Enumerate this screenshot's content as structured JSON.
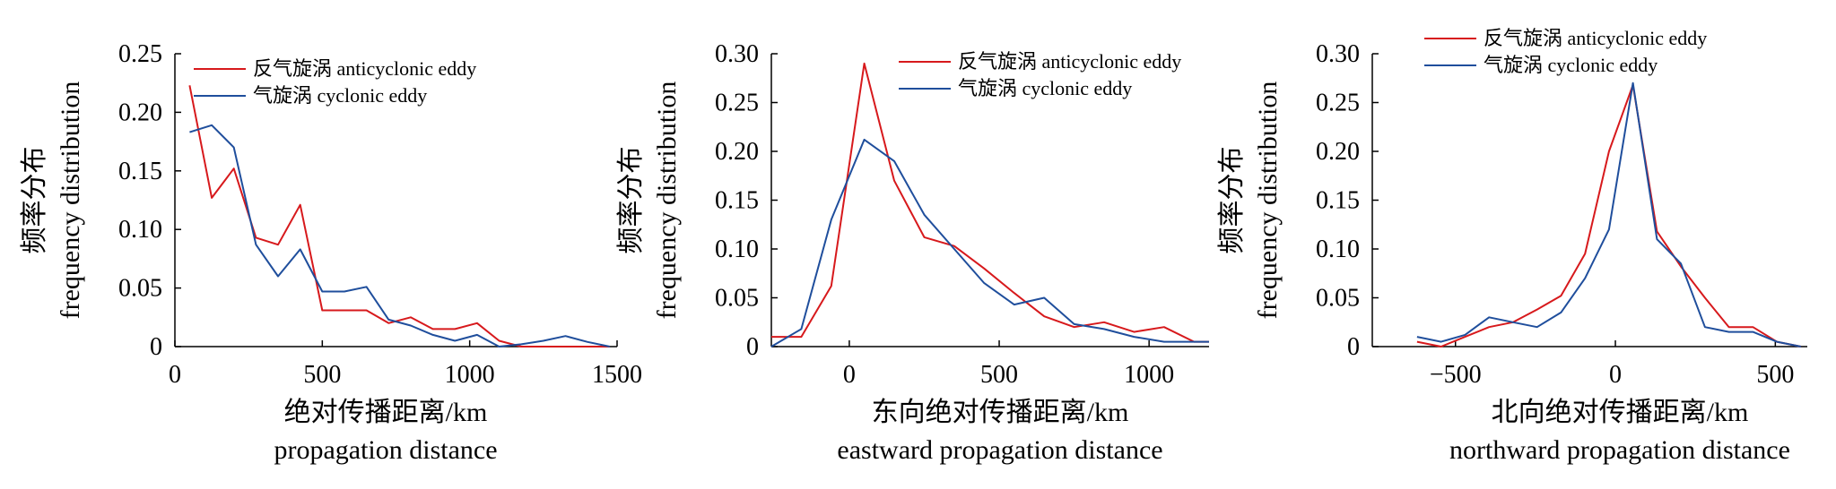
{
  "chart_data": [
    {
      "type": "line",
      "xlabel": "绝对传播距离/km",
      "xlabel_en": "propagation distance",
      "ylabel": "频率分布",
      "ylabel_en": "frequency distribution",
      "xlim": [
        0,
        1500
      ],
      "ylim": [
        0,
        0.25
      ],
      "xticks": [
        0,
        500,
        1000,
        1500
      ],
      "yticks": [
        0,
        0.05,
        0.1,
        0.15,
        0.2,
        0.25
      ],
      "ytick_labels": [
        "0",
        "0.05",
        "0.10",
        "0.15",
        "0.20",
        "0.25"
      ],
      "legend_position": "top-left",
      "series": [
        {
          "name": "反气旋涡 anticyclonic eddy",
          "color": "#d7191c",
          "x": [
            50,
            125,
            200,
            275,
            350,
            425,
            500,
            575,
            650,
            725,
            800,
            875,
            950,
            1025,
            1100,
            1175,
            1250,
            1325,
            1400,
            1475
          ],
          "y": [
            0.223,
            0.127,
            0.152,
            0.093,
            0.087,
            0.121,
            0.031,
            0.031,
            0.031,
            0.02,
            0.025,
            0.015,
            0.015,
            0.02,
            0.005,
            0,
            0,
            0,
            0,
            0
          ]
        },
        {
          "name": "气旋涡 cyclonic eddy",
          "color": "#1f4e9c",
          "x": [
            50,
            125,
            200,
            275,
            350,
            425,
            500,
            575,
            650,
            725,
            800,
            875,
            950,
            1025,
            1100,
            1175,
            1250,
            1325,
            1400,
            1475
          ],
          "y": [
            0.183,
            0.189,
            0.17,
            0.087,
            0.06,
            0.083,
            0.047,
            0.047,
            0.051,
            0.023,
            0.018,
            0.01,
            0.005,
            0.01,
            0,
            0.002,
            0.005,
            0.009,
            0.004,
            0
          ]
        }
      ]
    },
    {
      "type": "line",
      "xlabel": "东向绝对传播距离/km",
      "xlabel_en": "eastward propagation distance",
      "ylabel": "频率分布",
      "ylabel_en": "frequency distribution",
      "xlim": [
        -260,
        1200
      ],
      "ylim": [
        0,
        0.3
      ],
      "xticks": [
        0,
        500,
        1000
      ],
      "yticks": [
        0,
        0.05,
        0.1,
        0.15,
        0.2,
        0.25,
        0.3
      ],
      "ytick_labels": [
        "0",
        "0.05",
        "0.10",
        "0.15",
        "0.20",
        "0.25",
        "0.30"
      ],
      "legend_position": "top-right",
      "series": [
        {
          "name": "反气旋涡 anticyclonic eddy",
          "color": "#d7191c",
          "x": [
            -260,
            -160,
            -60,
            50,
            150,
            250,
            350,
            450,
            550,
            650,
            750,
            850,
            950,
            1050,
            1150,
            1200
          ],
          "y": [
            0.01,
            0.01,
            0.062,
            0.29,
            0.17,
            0.112,
            0.103,
            0.08,
            0.055,
            0.031,
            0.02,
            0.025,
            0.015,
            0.02,
            0.005,
            0.005
          ]
        },
        {
          "name": "气旋涡 cyclonic eddy",
          "color": "#1f4e9c",
          "x": [
            -260,
            -160,
            -60,
            50,
            150,
            250,
            350,
            450,
            550,
            650,
            750,
            850,
            950,
            1050,
            1150,
            1200
          ],
          "y": [
            0,
            0.018,
            0.13,
            0.212,
            0.19,
            0.135,
            0.1,
            0.065,
            0.043,
            0.05,
            0.023,
            0.018,
            0.01,
            0.005,
            0.005,
            0.005
          ]
        }
      ]
    },
    {
      "type": "line",
      "xlabel": "北向绝对传播距离/km",
      "xlabel_en": "northward propagation distance",
      "ylabel": "频率分布",
      "ylabel_en": "frequency distribution",
      "xlim": [
        -760,
        600
      ],
      "ylim": [
        0,
        0.3
      ],
      "xticks": [
        -500,
        0,
        500
      ],
      "yticks": [
        0,
        0.05,
        0.1,
        0.15,
        0.2,
        0.25,
        0.3
      ],
      "ytick_labels": [
        "0",
        "0.05",
        "0.10",
        "0.15",
        "0.20",
        "0.25",
        "0.30"
      ],
      "legend_position": "top-left",
      "series": [
        {
          "name": "反气旋涡 anticyclonic eddy",
          "color": "#d7191c",
          "x": [
            -620,
            -545,
            -470,
            -395,
            -320,
            -245,
            -170,
            -95,
            -20,
            55,
            130,
            205,
            280,
            355,
            430,
            505,
            580
          ],
          "y": [
            0.005,
            0,
            0.01,
            0.02,
            0.025,
            0.038,
            0.052,
            0.095,
            0.2,
            0.268,
            0.118,
            0.082,
            0.05,
            0.02,
            0.02,
            0.005,
            0
          ]
        },
        {
          "name": "气旋涡 cyclonic eddy",
          "color": "#1f4e9c",
          "x": [
            -620,
            -545,
            -470,
            -395,
            -320,
            -245,
            -170,
            -95,
            -20,
            55,
            130,
            205,
            280,
            355,
            430,
            505,
            580
          ],
          "y": [
            0.01,
            0.005,
            0.012,
            0.03,
            0.025,
            0.02,
            0.035,
            0.07,
            0.12,
            0.27,
            0.11,
            0.085,
            0.02,
            0.015,
            0.015,
            0.005,
            0
          ]
        }
      ]
    }
  ]
}
